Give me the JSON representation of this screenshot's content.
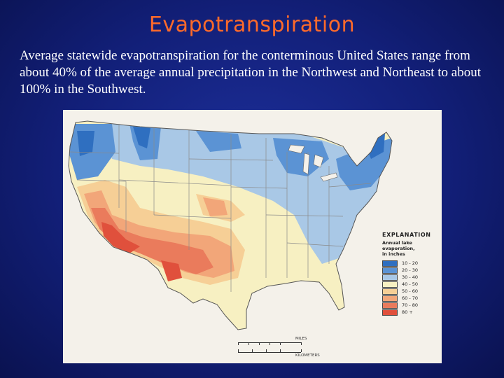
{
  "title": "Evapotranspiration",
  "description": "Average statewide evapotranspiration for the conterminous United States range from about 40% of the average annual precipitation in the Northwest and Northeast to about 100% in the Southwest.",
  "map": {
    "legend": {
      "title": "EXPLANATION",
      "subtitle": [
        "Annual lake",
        "evaporation,",
        "in inches"
      ],
      "items": [
        {
          "label": "10 - 20",
          "color": "#2f6fc0"
        },
        {
          "label": "20 - 30",
          "color": "#5b93d4"
        },
        {
          "label": "30 - 40",
          "color": "#a9c8e6"
        },
        {
          "label": "40 - 50",
          "color": "#f7f0c2"
        },
        {
          "label": "50 - 60",
          "color": "#f6cf96"
        },
        {
          "label": "60 - 70",
          "color": "#f2a679"
        },
        {
          "label": "70 - 80",
          "color": "#ea7b5c"
        },
        {
          "label": "80 +",
          "color": "#e0503c"
        }
      ]
    },
    "scale": {
      "unit_top": "MILES",
      "unit_bottom": "KILOMETERS"
    }
  }
}
